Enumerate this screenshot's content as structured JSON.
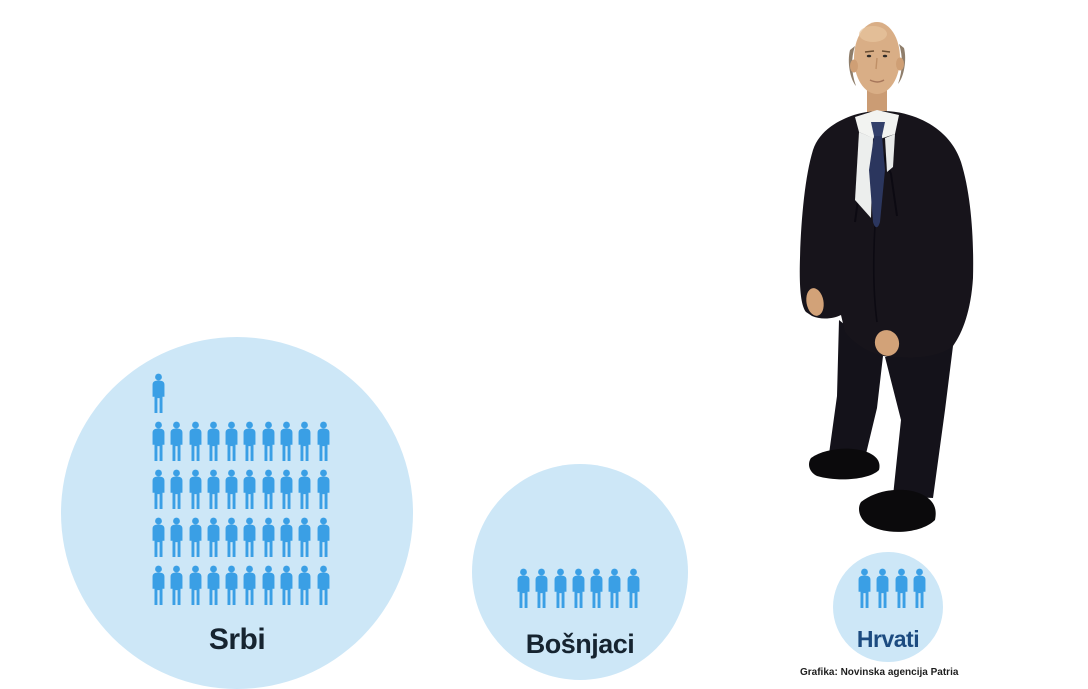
{
  "credit": "Grafika: Novinska agencija Patria",
  "chart_data": {
    "type": "pictogram",
    "title": "",
    "legend_position": "none",
    "icon": "person-icon",
    "icon_color": "#3a9fe5",
    "bubble_color": "#cde7f7",
    "groups": [
      {
        "label": "Srbi",
        "count": 41,
        "rows": [
          1,
          10,
          10,
          10,
          10
        ],
        "label_color": "#162430"
      },
      {
        "label": "Bošnjaci",
        "count": 7,
        "rows": [
          7
        ],
        "label_color": "#162430"
      },
      {
        "label": "Hrvati",
        "count": 4,
        "rows": [
          4
        ],
        "label_color": "#1c4b80"
      }
    ]
  }
}
